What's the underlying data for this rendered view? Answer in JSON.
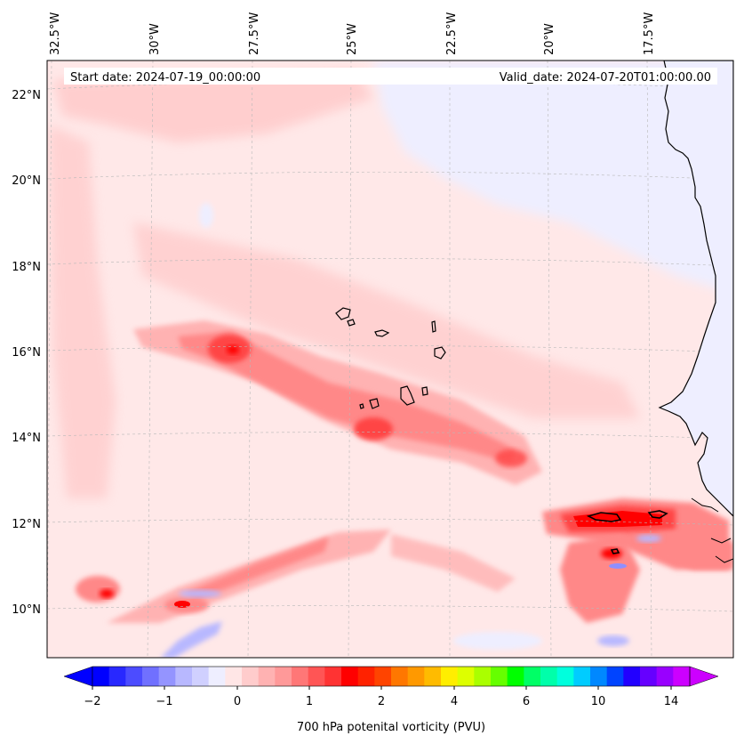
{
  "header": {
    "start_date": "Start date: 2024-07-19_00:00:00",
    "valid_date": "Valid_date: 2024-07-20T01:00:00.00"
  },
  "longitude_labels": [
    "32.5°W",
    "30°W",
    "27.5°W",
    "25°W",
    "22.5°W",
    "20°W",
    "17.5°W"
  ],
  "latitude_labels": [
    "22°N",
    "20°N",
    "18°N",
    "16°N",
    "14°N",
    "12°N",
    "10°N"
  ],
  "colorbar": {
    "label": "700 hPa potenital vorticity (PVU)",
    "tick_labels": [
      "−2",
      "−1",
      "0",
      "1",
      "2",
      "4",
      "6",
      "10",
      "14"
    ],
    "colors": [
      "#0000ff",
      "#2828ff",
      "#4c4cff",
      "#7070ff",
      "#9494ff",
      "#b8b8ff",
      "#d0d0ff",
      "#eeeeff",
      "#ffe6e6",
      "#ffcccc",
      "#ffb2b2",
      "#ff9999",
      "#ff7777",
      "#ff5555",
      "#ff3333",
      "#ff0000",
      "#ff2200",
      "#ff4400",
      "#ff7700",
      "#ff9900",
      "#ffbb00",
      "#ffee00",
      "#ddff00",
      "#aaff00",
      "#66ff00",
      "#00ff00",
      "#00ff66",
      "#00ffaa",
      "#00ffdd",
      "#00ccff",
      "#0088ff",
      "#0044ff",
      "#2200ff",
      "#6600ff",
      "#9900ff",
      "#cc00ff"
    ],
    "over_color": "#cc00ff",
    "under_color": "#0000ff"
  },
  "field_colors": {
    "background": "#ffe8e8",
    "negative_light": "#eeeeff",
    "negative_mid": "#b8b8ff",
    "negative_strong": "#8f8fff",
    "pos_1": "#ffcccc",
    "pos_2": "#ffb2b2",
    "pos_3": "#ff8888",
    "pos_4": "#ff4444",
    "pos_5": "#ff0000",
    "peak": "#000000"
  }
}
